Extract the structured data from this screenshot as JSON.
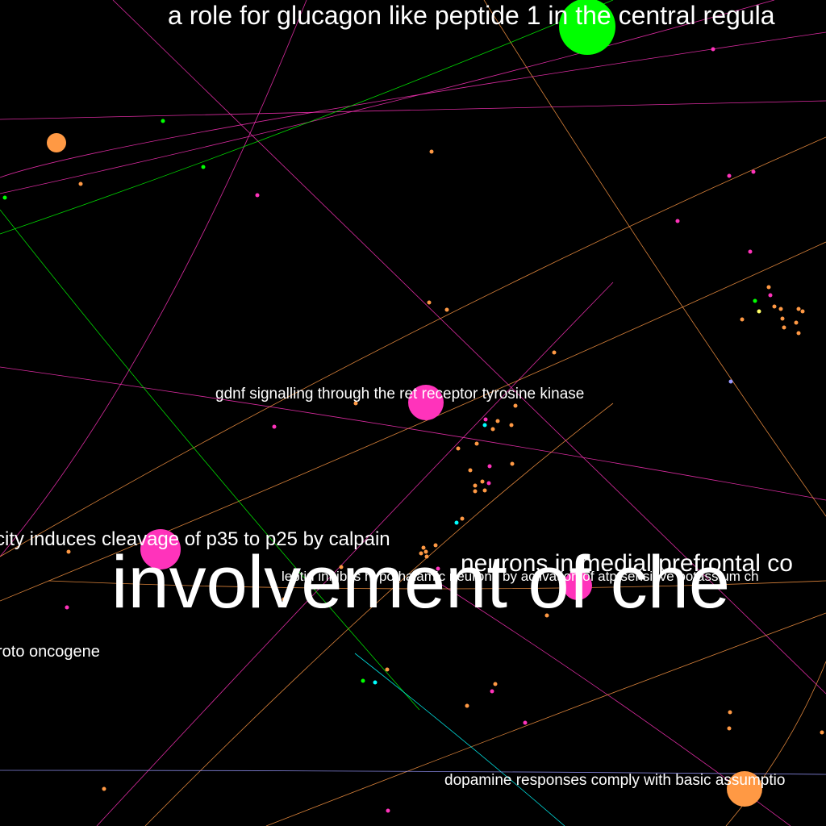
{
  "labels": {
    "glp1": "a role for glucagon like peptide 1 in the central regula",
    "gdnf": "gdnf signalling through the ret receptor tyrosine kinase",
    "p35": "city induces cleavage of p35 to p25 by calpain",
    "mpfc": "neurons in medial prefrontal co",
    "leptin": "leptin inhibits hypothalamic neurons by activation of atp sensitive potassium ch",
    "involvement": "involvement of che",
    "proto": "roto oncogene",
    "dopamine": "dopamine responses comply with basic assumptio"
  },
  "colors": {
    "background": "#000000",
    "label": "#ffffff",
    "green": "#00ff00",
    "magenta": "#ff33bb",
    "orange": "#ff9944",
    "cyan": "#00ffff",
    "lavender": "#9999ff",
    "yellow": "#ffff66"
  }
}
